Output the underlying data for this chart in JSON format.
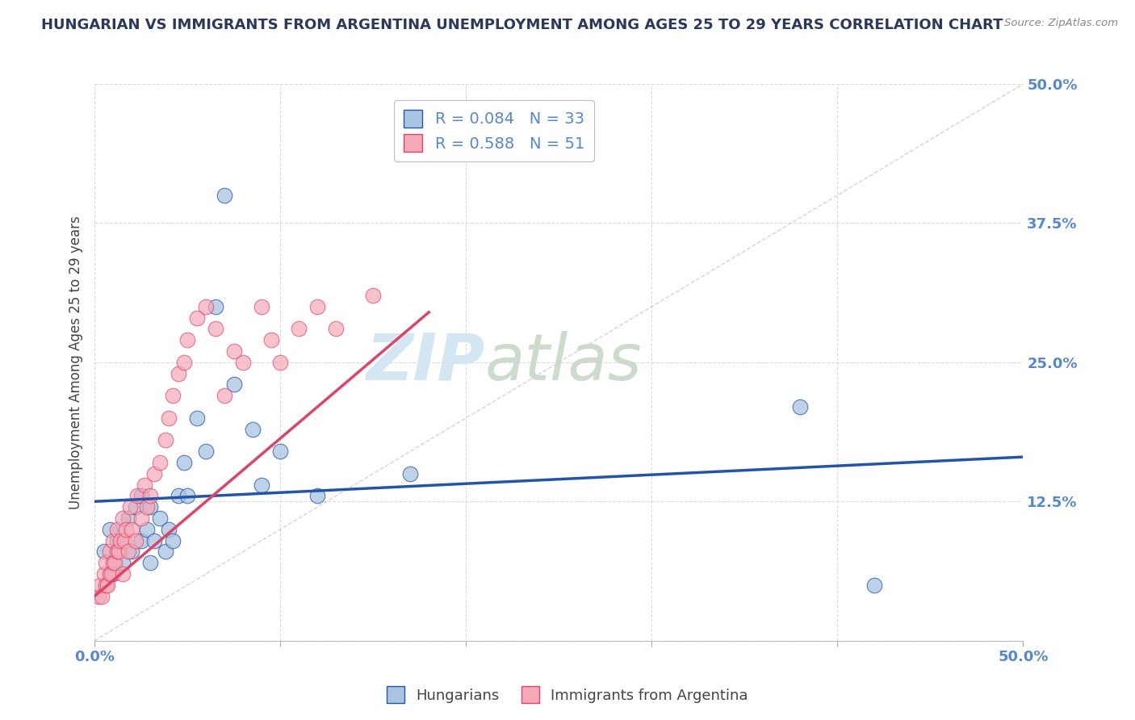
{
  "title": "HUNGARIAN VS IMMIGRANTS FROM ARGENTINA UNEMPLOYMENT AMONG AGES 25 TO 29 YEARS CORRELATION CHART",
  "source": "Source: ZipAtlas.com",
  "ylabel": "Unemployment Among Ages 25 to 29 years",
  "xlim": [
    0,
    0.5
  ],
  "ylim": [
    0,
    0.5
  ],
  "blue_R": 0.084,
  "blue_N": 33,
  "pink_R": 0.588,
  "pink_N": 51,
  "blue_color": "#A8C4E0",
  "pink_color": "#F4A8B8",
  "blue_line_color": "#2255AA",
  "pink_line_color": "#DD4466",
  "watermark_zip": "ZIP",
  "watermark_atlas": "atlas",
  "watermark_color_zip": "#D0E4F0",
  "watermark_color_atlas": "#C8D8C8",
  "legend_blue_label": "Hungarians",
  "legend_pink_label": "Immigrants from Argentina",
  "background_color": "#FFFFFF",
  "grid_color": "#CCCCCC",
  "title_color": "#2B3A5C",
  "axis_label_color": "#444444",
  "tick_label_color": "#5588CC",
  "blue_scatter_x": [
    0.005,
    0.008,
    0.01,
    0.012,
    0.015,
    0.018,
    0.02,
    0.022,
    0.025,
    0.025,
    0.028,
    0.03,
    0.03,
    0.032,
    0.035,
    0.038,
    0.04,
    0.042,
    0.045,
    0.048,
    0.05,
    0.055,
    0.06,
    0.065,
    0.07,
    0.075,
    0.085,
    0.09,
    0.1,
    0.12,
    0.17,
    0.38,
    0.42
  ],
  "blue_scatter_y": [
    0.08,
    0.1,
    0.06,
    0.09,
    0.07,
    0.11,
    0.08,
    0.12,
    0.09,
    0.13,
    0.1,
    0.07,
    0.12,
    0.09,
    0.11,
    0.08,
    0.1,
    0.09,
    0.13,
    0.16,
    0.13,
    0.2,
    0.17,
    0.3,
    0.4,
    0.23,
    0.19,
    0.14,
    0.17,
    0.13,
    0.15,
    0.21,
    0.05
  ],
  "pink_scatter_x": [
    0.002,
    0.003,
    0.004,
    0.005,
    0.006,
    0.006,
    0.007,
    0.008,
    0.008,
    0.009,
    0.01,
    0.01,
    0.011,
    0.012,
    0.012,
    0.013,
    0.014,
    0.015,
    0.015,
    0.016,
    0.017,
    0.018,
    0.019,
    0.02,
    0.022,
    0.023,
    0.025,
    0.027,
    0.028,
    0.03,
    0.032,
    0.035,
    0.038,
    0.04,
    0.042,
    0.045,
    0.048,
    0.05,
    0.055,
    0.06,
    0.065,
    0.07,
    0.075,
    0.08,
    0.09,
    0.095,
    0.1,
    0.11,
    0.12,
    0.13,
    0.15
  ],
  "pink_scatter_y": [
    0.04,
    0.05,
    0.04,
    0.06,
    0.05,
    0.07,
    0.05,
    0.06,
    0.08,
    0.06,
    0.07,
    0.09,
    0.07,
    0.08,
    0.1,
    0.08,
    0.09,
    0.06,
    0.11,
    0.09,
    0.1,
    0.08,
    0.12,
    0.1,
    0.09,
    0.13,
    0.11,
    0.14,
    0.12,
    0.13,
    0.15,
    0.16,
    0.18,
    0.2,
    0.22,
    0.24,
    0.25,
    0.27,
    0.29,
    0.3,
    0.28,
    0.22,
    0.26,
    0.25,
    0.3,
    0.27,
    0.25,
    0.28,
    0.3,
    0.28,
    0.31
  ],
  "blue_line_x0": 0.0,
  "blue_line_x1": 0.5,
  "blue_line_y0": 0.125,
  "blue_line_y1": 0.165,
  "pink_line_x0": 0.0,
  "pink_line_x1": 0.18,
  "pink_line_y0": 0.04,
  "pink_line_y1": 0.295
}
